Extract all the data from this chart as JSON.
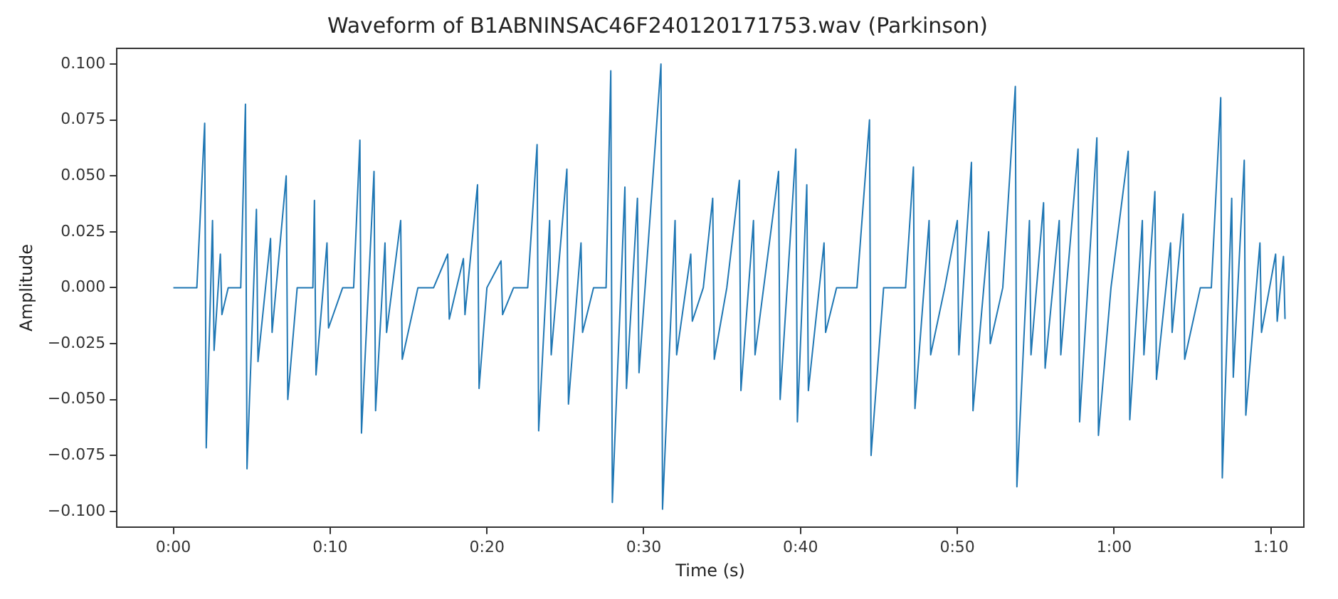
{
  "chart_data": {
    "type": "line",
    "title": "Waveform of B1ABNINSAC46F240120171753.wav (Parkinson)",
    "xlabel": "Time (s)",
    "ylabel": "Amplitude",
    "grid": false,
    "legend": false,
    "marker": "none",
    "line_style": "solid",
    "xlim": [
      -3.6,
      72.1
    ],
    "xticks": [
      {
        "value": 0,
        "label": "0:00"
      },
      {
        "value": 10,
        "label": "0:10"
      },
      {
        "value": 20,
        "label": "0:20"
      },
      {
        "value": 30,
        "label": "0:30"
      },
      {
        "value": 40,
        "label": "0:40"
      },
      {
        "value": 50,
        "label": "0:50"
      },
      {
        "value": 60,
        "label": "1:00"
      },
      {
        "value": 70,
        "label": "1:10"
      }
    ],
    "ylim": [
      -0.107,
      0.107
    ],
    "yticks": [
      {
        "value": -0.1,
        "label": "−0.100"
      },
      {
        "value": -0.075,
        "label": "−0.075"
      },
      {
        "value": -0.05,
        "label": "−0.050"
      },
      {
        "value": -0.025,
        "label": "−0.025"
      },
      {
        "value": 0,
        "label": "0.000"
      },
      {
        "value": 0.025,
        "label": "0.025"
      },
      {
        "value": 0.05,
        "label": "0.050"
      },
      {
        "value": 0.075,
        "label": "0.075"
      },
      {
        "value": 0.1,
        "label": "0.100"
      }
    ],
    "series": [
      {
        "color": "#1f77b4",
        "x": [
          0,
          1.5,
          2.0,
          2.1,
          2.5,
          2.6,
          3.0,
          3.1,
          3.5,
          4.3,
          4.6,
          4.7,
          5.3,
          5.4,
          6.2,
          6.3,
          7.2,
          7.3,
          7.9,
          8.9,
          9.0,
          9.1,
          9.8,
          9.9,
          10.8,
          11.5,
          11.9,
          12.0,
          12.8,
          12.9,
          13.5,
          13.6,
          14.5,
          14.6,
          15.6,
          16.6,
          17.5,
          17.6,
          18.5,
          18.6,
          19.4,
          19.5,
          20.0,
          20.9,
          21.0,
          21.7,
          22.6,
          23.2,
          23.3,
          24.0,
          24.1,
          25.1,
          25.2,
          26.0,
          26.1,
          26.8,
          27.6,
          27.9,
          28.0,
          28.8,
          28.9,
          29.6,
          29.7,
          31.1,
          31.2,
          32.0,
          32.1,
          33.0,
          33.1,
          33.8,
          34.4,
          34.5,
          35.3,
          36.1,
          36.2,
          37.0,
          37.1,
          38.6,
          38.7,
          39.7,
          39.8,
          40.4,
          40.5,
          41.5,
          41.6,
          42.3,
          43.6,
          44.4,
          44.5,
          45.3,
          46.7,
          47.2,
          47.3,
          48.2,
          48.3,
          49.2,
          50.0,
          50.1,
          50.9,
          51.0,
          52.0,
          52.1,
          52.9,
          53.7,
          53.8,
          54.6,
          54.7,
          55.5,
          55.6,
          56.5,
          56.6,
          57.7,
          57.8,
          58.9,
          59.0,
          59.8,
          60.9,
          61.0,
          61.8,
          61.9,
          62.6,
          62.7,
          63.6,
          63.7,
          64.4,
          64.5,
          65.5,
          66.2,
          66.8,
          66.9,
          67.5,
          67.6,
          68.3,
          68.4,
          69.3,
          69.4,
          70.3,
          70.4,
          70.8,
          70.9
        ],
        "values": [
          0,
          0,
          0.0735,
          -0.0716,
          0.03,
          -0.028,
          0.015,
          -0.012,
          0,
          0,
          0.082,
          -0.081,
          0.035,
          -0.033,
          0.022,
          -0.02,
          0.05,
          -0.05,
          0,
          0,
          0.039,
          -0.039,
          0.02,
          -0.018,
          0,
          0,
          0.066,
          -0.065,
          0.052,
          -0.055,
          0.02,
          -0.02,
          0.03,
          -0.032,
          0,
          0,
          0.015,
          -0.014,
          0.013,
          -0.012,
          0.046,
          -0.045,
          0,
          0.012,
          -0.012,
          0,
          0,
          0.064,
          -0.064,
          0.03,
          -0.03,
          0.053,
          -0.052,
          0.02,
          -0.02,
          0,
          0,
          0.097,
          -0.096,
          0.045,
          -0.045,
          0.04,
          -0.038,
          0.1,
          -0.099,
          0.03,
          -0.03,
          0.015,
          -0.015,
          0,
          0.04,
          -0.032,
          0,
          0.048,
          -0.046,
          0.03,
          -0.03,
          0.052,
          -0.05,
          0.062,
          -0.06,
          0.046,
          -0.046,
          0.02,
          -0.02,
          0,
          0,
          0.075,
          -0.075,
          0,
          0,
          0.054,
          -0.054,
          0.03,
          -0.03,
          0,
          0.03,
          -0.03,
          0.056,
          -0.055,
          0.025,
          -0.025,
          0,
          0.09,
          -0.089,
          0.03,
          -0.03,
          0.038,
          -0.036,
          0.03,
          -0.03,
          0.062,
          -0.06,
          0.067,
          -0.066,
          0,
          0.061,
          -0.059,
          0.03,
          -0.03,
          0.043,
          -0.041,
          0.02,
          -0.02,
          0.033,
          -0.032,
          0,
          0,
          0.085,
          -0.085,
          0.04,
          -0.04,
          0.057,
          -0.057,
          0.02,
          -0.02,
          0.015,
          -0.015,
          0.014,
          -0.014
        ]
      }
    ]
  }
}
